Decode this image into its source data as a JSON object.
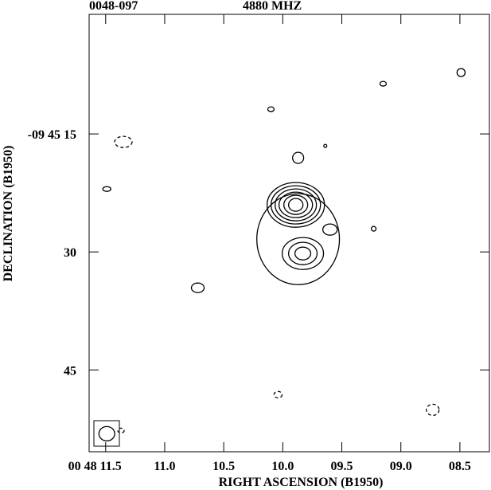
{
  "chart_data": {
    "type": "contour",
    "title": "0048-097",
    "subtitle": "4880 MHZ",
    "xlabel": "RIGHT ASCENSION (B1950)",
    "ylabel": "DECLINATION (B1950)",
    "xlim": [
      11.64,
      8.25
    ],
    "ylim": [
      55.4,
      -0.2
    ],
    "xticks": [
      {
        "value": 11.5,
        "label": "00 48 11.5"
      },
      {
        "value": 11.0,
        "label": "11.0"
      },
      {
        "value": 10.5,
        "label": "10.5"
      },
      {
        "value": 10.0,
        "label": "10.0"
      },
      {
        "value": 9.5,
        "label": "09.5"
      },
      {
        "value": 9.0,
        "label": "09.0"
      },
      {
        "value": 8.5,
        "label": "08.5"
      }
    ],
    "yticks": [
      {
        "value": 15,
        "label": "-09 45 15"
      },
      30,
      45
    ],
    "color": "#000000",
    "contours": [
      {
        "x": 9.89,
        "y": 24.02,
        "rx": 0.061,
        "ry": 0.81,
        "dashed": false
      },
      {
        "x": 9.89,
        "y": 24.02,
        "rx": 0.101,
        "ry": 1.22,
        "dashed": false
      },
      {
        "x": 9.89,
        "y": 24.02,
        "rx": 0.142,
        "ry": 1.62,
        "dashed": false
      },
      {
        "x": 9.89,
        "y": 24.02,
        "rx": 0.175,
        "ry": 2.03,
        "dashed": false
      },
      {
        "x": 9.89,
        "y": 24.02,
        "rx": 0.209,
        "ry": 2.43,
        "dashed": false
      },
      {
        "x": 9.89,
        "y": 24.02,
        "rx": 0.243,
        "ry": 2.84,
        "dashed": false
      },
      {
        "x": 9.83,
        "y": 30.2,
        "rx": 0.067,
        "ry": 0.81,
        "dashed": false
      },
      {
        "x": 9.83,
        "y": 30.2,
        "rx": 0.121,
        "ry": 1.42,
        "dashed": false
      },
      {
        "x": 9.83,
        "y": 30.2,
        "rx": 0.175,
        "ry": 2.03,
        "dashed": false
      },
      {
        "x": 9.87,
        "y": 28.38,
        "rx": 0.35,
        "ry": 5.78,
        "dashed": false
      },
      {
        "x": 9.6,
        "y": 27.16,
        "rx": 0.061,
        "ry": 0.71,
        "dashed": false
      },
      {
        "x": 9.87,
        "y": 18.04,
        "rx": 0.047,
        "ry": 0.71,
        "dashed": false
      },
      {
        "x": 9.64,
        "y": 16.52,
        "rx": 0.013,
        "ry": 0.2,
        "dashed": false
      },
      {
        "x": 10.1,
        "y": 11.86,
        "rx": 0.027,
        "ry": 0.3,
        "dashed": false
      },
      {
        "x": 9.15,
        "y": 8.62,
        "rx": 0.027,
        "ry": 0.3,
        "dashed": false
      },
      {
        "x": 8.49,
        "y": 7.2,
        "rx": 0.034,
        "ry": 0.51,
        "dashed": false
      },
      {
        "x": 9.23,
        "y": 27.06,
        "rx": 0.02,
        "ry": 0.3,
        "dashed": false
      },
      {
        "x": 11.49,
        "y": 22.0,
        "rx": 0.034,
        "ry": 0.3,
        "dashed": false
      },
      {
        "x": 11.35,
        "y": 16.02,
        "rx": 0.074,
        "ry": 0.71,
        "dashed": true
      },
      {
        "x": 10.72,
        "y": 34.56,
        "rx": 0.054,
        "ry": 0.61,
        "dashed": false
      },
      {
        "x": 10.04,
        "y": 48.14,
        "rx": 0.034,
        "ry": 0.41,
        "dashed": true
      },
      {
        "x": 8.73,
        "y": 50.07,
        "rx": 0.054,
        "ry": 0.71,
        "dashed": true
      },
      {
        "x": 11.49,
        "y": 53.11,
        "rx": 0.067,
        "ry": 0.91,
        "dashed": false
      },
      {
        "x": 11.37,
        "y": 52.7,
        "rx": 0.027,
        "ry": 0.3,
        "dashed": true
      }
    ]
  }
}
